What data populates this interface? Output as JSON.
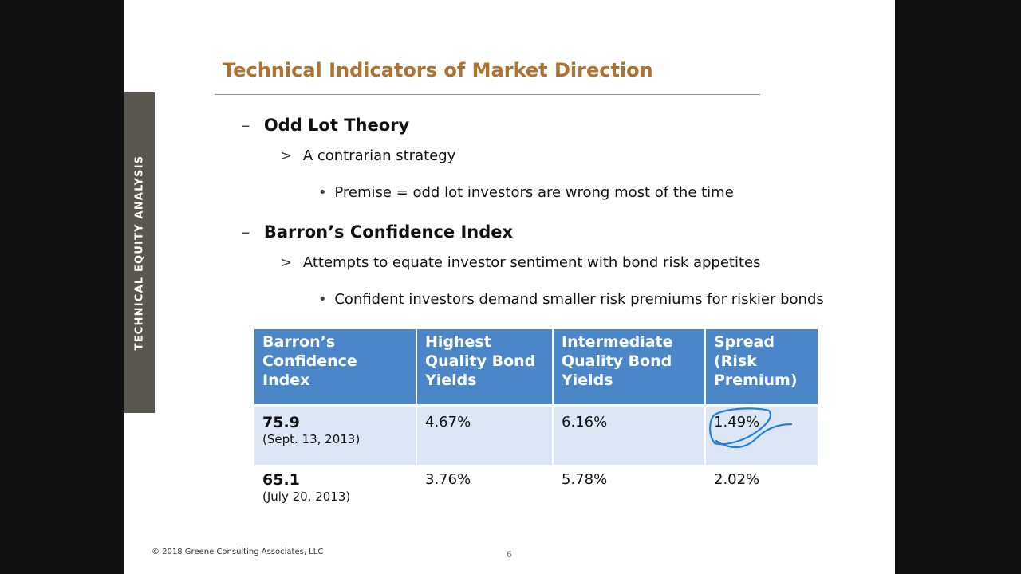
{
  "side_tab": "TECHNICAL EQUITY ANALYSIS",
  "title": "Technical Indicators of Market Direction",
  "bullets": {
    "odd_lot": {
      "marker": "–",
      "heading": "Odd Lot Theory",
      "sub_marker": ">",
      "sub": "A contrarian strategy",
      "point_marker": "•",
      "point": "Premise = odd lot investors are wrong most of the time"
    },
    "barrons": {
      "marker": "–",
      "heading": "Barron’s Confidence Index",
      "sub_marker": ">",
      "sub": "Attempts to equate investor sentiment with bond risk appetites",
      "point_marker": "•",
      "point": "Confident investors demand smaller risk premiums for riskier bonds"
    }
  },
  "table": {
    "headers": [
      [
        "Barron’s",
        "Confidence Index"
      ],
      [
        "Highest",
        "Quality Bond",
        "Yields"
      ],
      [
        "Intermediate",
        "Quality Bond",
        "Yields"
      ],
      [
        "Spread",
        "(Risk",
        "Premium)"
      ]
    ],
    "rows": [
      {
        "index": "75.9",
        "date": "(Sept. 13, 2013)",
        "highest": "4.67%",
        "intermediate": "6.16%",
        "spread": "1.49%"
      },
      {
        "index": "65.1",
        "date": "(July 20, 2013)",
        "highest": "3.76%",
        "intermediate": "5.78%",
        "spread": "2.02%"
      }
    ],
    "header_color": "#4a86c8",
    "row_highlight_color": "#dde6f4"
  },
  "footer": "© 2018 Greene Consulting Associates, LLC",
  "page_number": "6",
  "colors": {
    "title": "#b0722f",
    "side_tab": "#5a5650",
    "annotation_ink": "#1f7fe0"
  }
}
